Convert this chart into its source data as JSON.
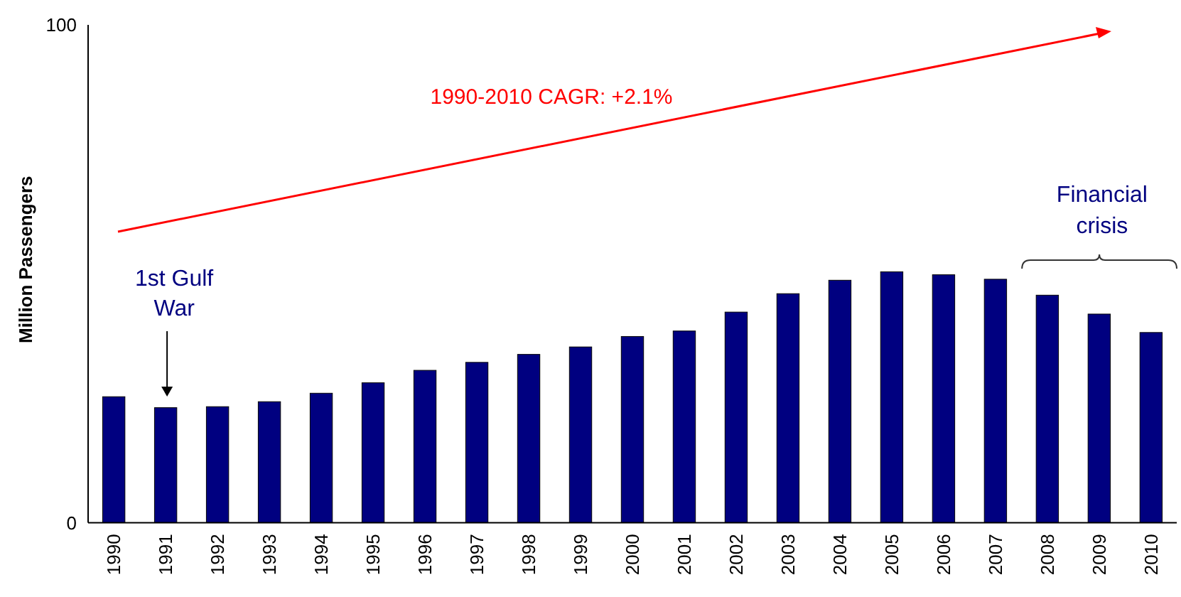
{
  "chart_data": {
    "type": "bar",
    "ylabel": "Million Passengers",
    "categories": [
      "1990",
      "1991",
      "1992",
      "1993",
      "1994",
      "1995",
      "1996",
      "1997",
      "1998",
      "1999",
      "2000",
      "2001",
      "2002",
      "2003",
      "2004",
      "2005",
      "2006",
      "2007",
      "2008",
      "2009",
      "2010"
    ],
    "values": [
      25.3,
      23.1,
      23.3,
      24.3,
      26.0,
      28.1,
      30.6,
      32.2,
      33.8,
      35.3,
      37.4,
      38.5,
      42.3,
      46.0,
      48.7,
      50.4,
      49.8,
      48.9,
      45.7,
      41.9,
      38.2
    ],
    "color": "#000080",
    "ylim": [
      0,
      100
    ],
    "yticks": [
      0,
      100
    ],
    "grid": false,
    "annotations": [
      "1990-2010 CAGR: +2.1%",
      "1st Gulf War",
      "Financial crisis"
    ]
  }
}
